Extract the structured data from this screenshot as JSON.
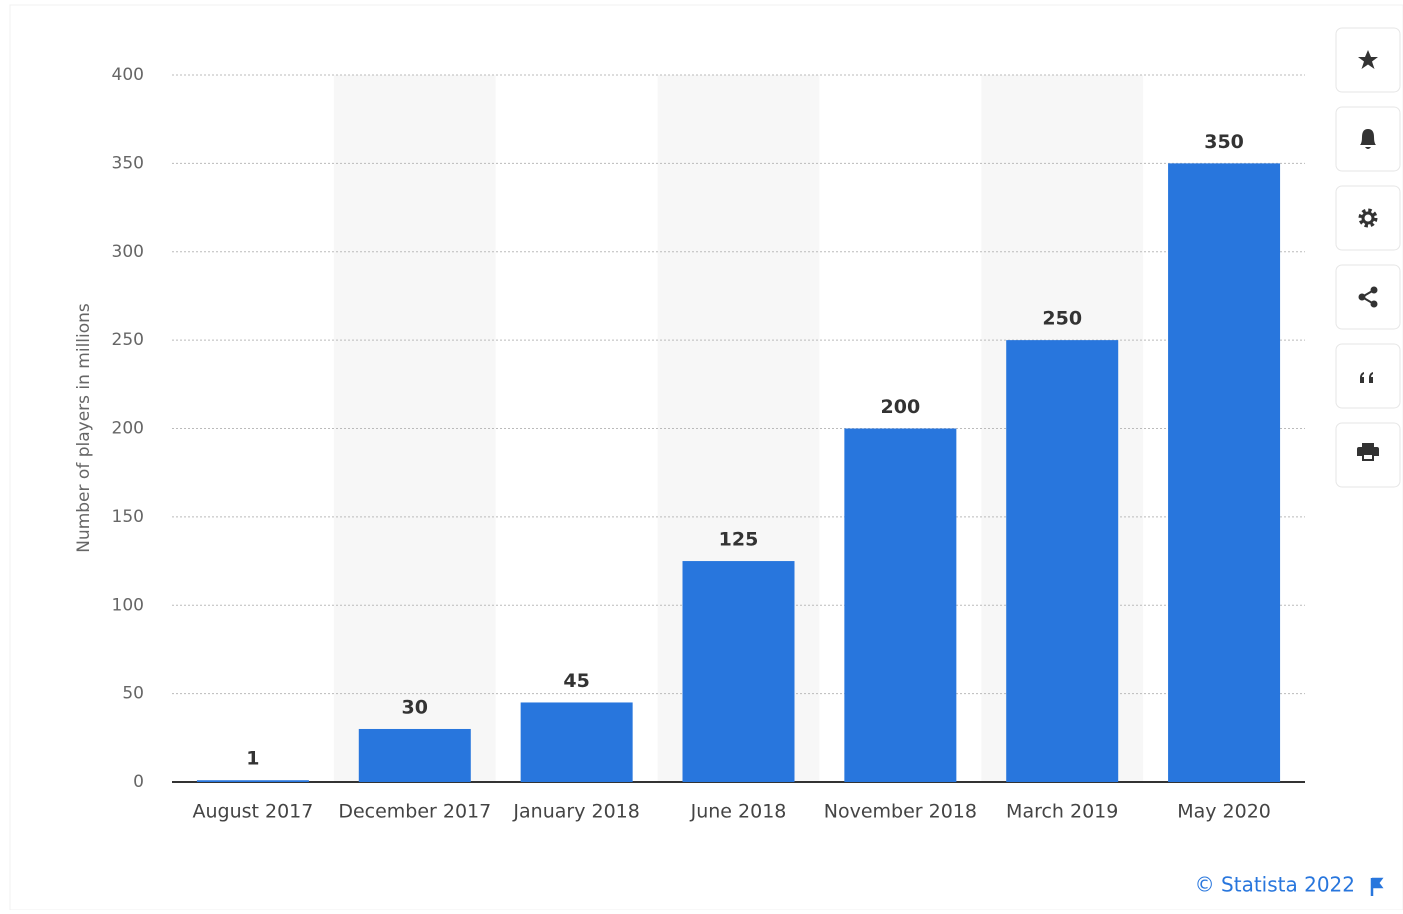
{
  "chart_data": {
    "type": "bar",
    "y_axis_label": "Number of players in millions",
    "categories": [
      "August 2017",
      "December 2017",
      "January 2018",
      "June 2018",
      "November 2018",
      "March 2019",
      "May 2020"
    ],
    "values": [
      1,
      30,
      45,
      125,
      200,
      250,
      350
    ],
    "color": "#2876dd",
    "ylim": [
      0,
      400
    ],
    "yticks": [
      0,
      50,
      100,
      150,
      200,
      250,
      300,
      350,
      400
    ],
    "grid": true,
    "alternate_shading": true,
    "credit": "© Statista 2022"
  }
}
